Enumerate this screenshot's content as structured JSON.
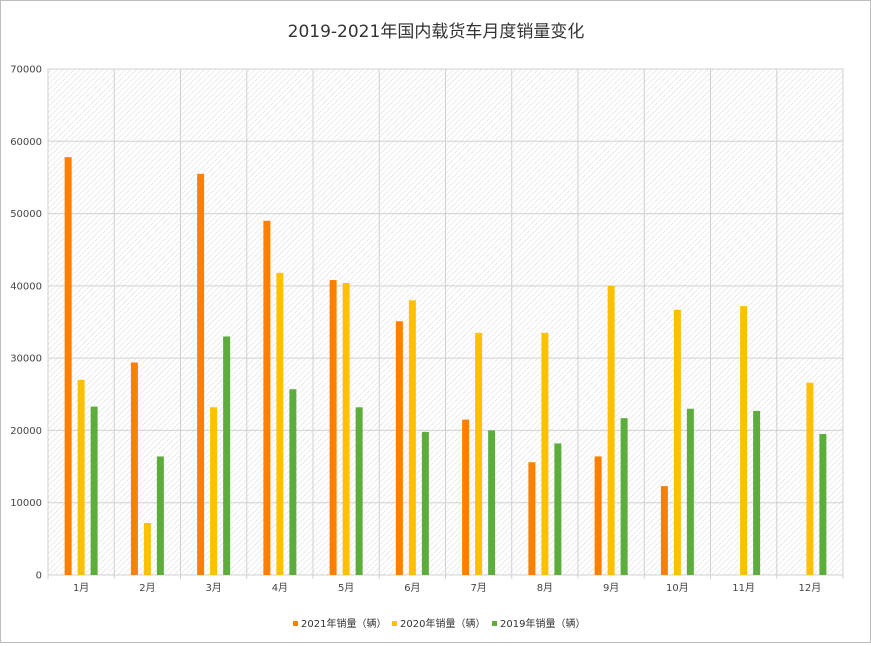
{
  "chart_data": {
    "type": "bar",
    "title": "2019-2021年国内载货车月度销量变化",
    "xlabel": "",
    "ylabel": "",
    "ylim": [
      0,
      70000
    ],
    "yticks": [
      "0",
      "10000",
      "20000",
      "30000",
      "40000",
      "50000",
      "60000",
      "70000"
    ],
    "grid": true,
    "legend_position": "bottom",
    "categories": [
      "1月",
      "2月",
      "3月",
      "4月",
      "5月",
      "6月",
      "7月",
      "8月",
      "9月",
      "10月",
      "11月",
      "12月"
    ],
    "series": [
      {
        "name": "2021年销量（辆）",
        "color": "#ff7f00",
        "values": [
          57800,
          29400,
          55500,
          49000,
          40800,
          35100,
          21500,
          15600,
          16400,
          12300,
          null,
          null
        ]
      },
      {
        "name": "2020年销量（辆）",
        "color": "#ffc000",
        "values": [
          27000,
          7200,
          23200,
          41800,
          40400,
          38000,
          33500,
          33500,
          40000,
          36700,
          37200,
          26600
        ]
      },
      {
        "name": "2019年销量（辆）",
        "color": "#5dad3d",
        "values": [
          23300,
          16400,
          33000,
          25700,
          23200,
          19800,
          20000,
          18200,
          21700,
          23000,
          22700,
          19500
        ]
      }
    ]
  }
}
